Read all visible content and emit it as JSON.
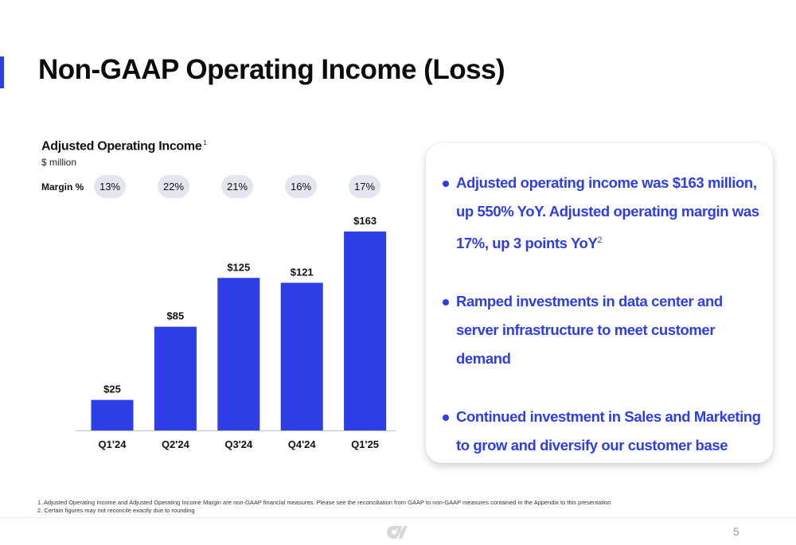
{
  "slide": {
    "title": "Non-GAAP Operating Income (Loss)",
    "page_number": "5",
    "footnotes": [
      "1. Adjusted Operating Income and Adjusted Operating Income Margin are non-GAAP financial measures. Please see the reconciliation from GAAP to non-GAAP measures contained in the Appendix to this presentation",
      "2. Certain figures may not reconcile exactly due to rounding"
    ],
    "logo_icon": "company-logo-icon",
    "accent_color": "#2e3ee6"
  },
  "chart": {
    "title": "Adjusted Operating Income",
    "title_sup": "1",
    "subtitle": "$ million",
    "margin_label": "Margin %"
  },
  "chart_data": {
    "type": "bar",
    "title": "Adjusted Operating Income",
    "ylabel": "$ million",
    "categories": [
      "Q1'24",
      "Q2'24",
      "Q3'24",
      "Q4'24",
      "Q1'25"
    ],
    "values": [
      25,
      85,
      125,
      121,
      163
    ],
    "value_labels": [
      "$25",
      "$85",
      "$125",
      "$121",
      "$163"
    ],
    "margins": [
      "13%",
      "22%",
      "21%",
      "16%",
      "17%"
    ],
    "ylim": [
      0,
      163
    ],
    "bar_color": "#2e3ee6",
    "grid": false,
    "legend": "none"
  },
  "highlights": [
    {
      "text": "Adjusted operating income was $163 million, up 550% YoY. Adjusted operating margin was 17%, up 3 points YoY",
      "sup": "2"
    },
    {
      "text": "Ramped investments in data center and server infrastructure to meet customer demand",
      "sup": ""
    },
    {
      "text": "Continued investment in Sales and Marketing to grow and diversify our customer base",
      "sup": ""
    }
  ]
}
